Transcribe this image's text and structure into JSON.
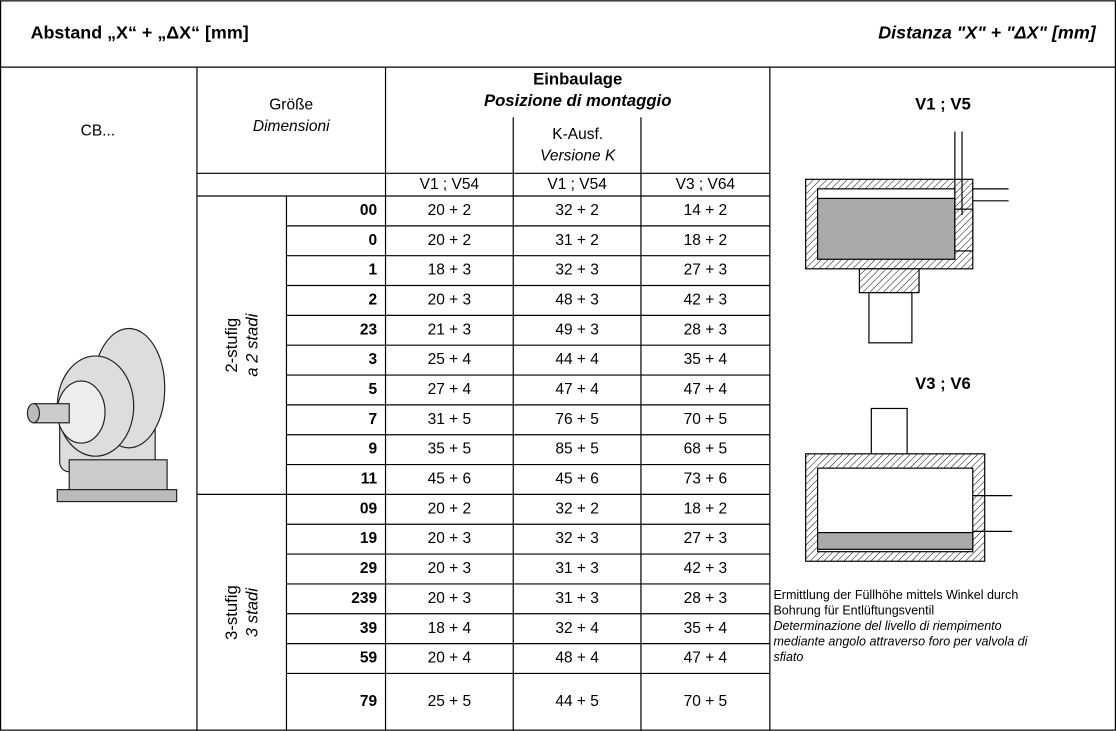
{
  "header": {
    "left": "Abstand „X“ + „ΔX“ [mm]",
    "right": "Distanza \"X\" + \"ΔX\" [mm]"
  },
  "table": {
    "model": "CB...",
    "size_header": [
      "Größe",
      "Dimensioni"
    ],
    "mounting_header": [
      "Einbaulage",
      "Posizione di montaggio"
    ],
    "k_header": [
      "K-Ausf.",
      "Versione K"
    ],
    "columns": [
      "V1 ; V54",
      "V1 ; V54",
      "V3 ; V64"
    ],
    "groups": [
      {
        "label": [
          "2-stufig",
          "a 2 stadi"
        ],
        "rows": [
          [
            "00",
            "20 + 2",
            "32 + 2",
            "14 + 2"
          ],
          [
            "0",
            "20 + 2",
            "31 + 2",
            "18 + 2"
          ],
          [
            "1",
            "18 + 3",
            "32 + 3",
            "27 + 3"
          ],
          [
            "2",
            "20 + 3",
            "48 + 3",
            "42 + 3"
          ],
          [
            "23",
            "21 + 3",
            "49 + 3",
            "28 + 3"
          ],
          [
            "3",
            "25 + 4",
            "44 + 4",
            "35 + 4"
          ],
          [
            "5",
            "27 + 4",
            "47 + 4",
            "47 + 4"
          ],
          [
            "7",
            "31 + 5",
            "76 + 5",
            "70 + 5"
          ],
          [
            "9",
            "35 + 5",
            "85 + 5",
            "68 + 5"
          ],
          [
            "11",
            "45 + 6",
            "45 + 6",
            "73 + 6"
          ]
        ]
      },
      {
        "label": [
          "3-stufig",
          "3 stadi"
        ],
        "rows": [
          [
            "09",
            "20 + 2",
            "32 + 2",
            "18 + 2"
          ],
          [
            "19",
            "20 + 3",
            "32 + 3",
            "27 + 3"
          ],
          [
            "29",
            "20 + 3",
            "31 + 3",
            "42 + 3"
          ],
          [
            "239",
            "20 + 3",
            "31 + 3",
            "28 + 3"
          ],
          [
            "39",
            "18 + 4",
            "32 + 4",
            "35 + 4"
          ],
          [
            "59",
            "20 + 4",
            "48 + 4",
            "47 + 4"
          ],
          [
            "79",
            "25 + 5",
            "44 + 5",
            "70 + 5"
          ]
        ]
      }
    ]
  },
  "diagram": {
    "top_label": "V1 ; V5",
    "bottom_label": "V3 ; V6",
    "note_de": [
      "Ermittlung der Füllhöhe mittels Winkel durch",
      "Bohrung für Entlüftungsventil"
    ],
    "note_it": [
      "Determinazione del livello di riempimento",
      "mediante angolo attraverso foro per valvola di",
      "sfiato"
    ]
  }
}
